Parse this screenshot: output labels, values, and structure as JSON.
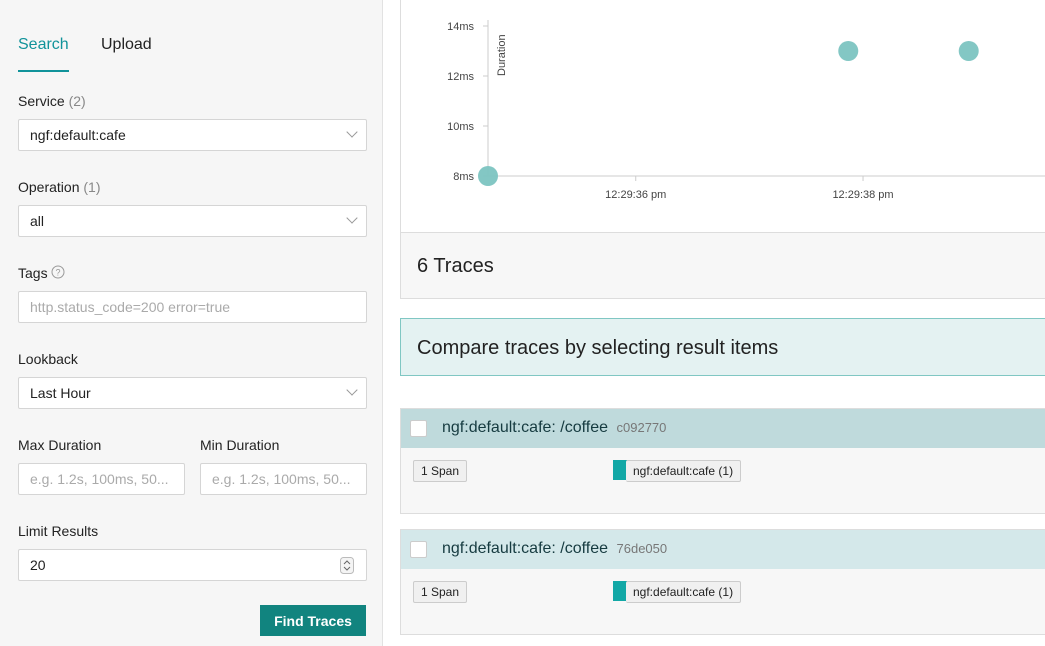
{
  "sidebar": {
    "tabs": [
      "Search",
      "Upload"
    ],
    "service_label": "Service",
    "service_count": "(2)",
    "service_value": "ngf:default:cafe",
    "operation_label": "Operation",
    "operation_count": "(1)",
    "operation_value": "all",
    "tags_label": "Tags",
    "tags_placeholder": "http.status_code=200 error=true",
    "lookback_label": "Lookback",
    "lookback_value": "Last Hour",
    "max_duration_label": "Max Duration",
    "max_duration_placeholder": "e.g. 1.2s, 100ms, 50...",
    "min_duration_label": "Min Duration",
    "min_duration_placeholder": "e.g. 1.2s, 100ms, 50...",
    "limit_label": "Limit Results",
    "limit_value": 20,
    "button": "Find Traces"
  },
  "chart": {
    "type": "scatter",
    "y_label": "Duration",
    "color": "#7cc4c1",
    "x": [
      34.7,
      37.87,
      38.93
    ],
    "values": [
      8,
      13,
      13
    ],
    "xlim": [
      34.7,
      39.61
    ],
    "ylim": [
      8,
      14
    ],
    "xticks": [
      {
        "value": 36,
        "label": "12:29:36 pm"
      },
      {
        "value": 38,
        "label": "12:29:38 pm"
      }
    ],
    "yticks": [
      {
        "value": 8,
        "label": "8ms"
      },
      {
        "value": 10,
        "label": "10ms"
      },
      {
        "value": 12,
        "label": "12ms"
      },
      {
        "value": 14,
        "label": "14ms"
      }
    ]
  },
  "traces_count": "6 Traces",
  "compare_text": "Compare traces by selecting result items",
  "results": [
    {
      "title": "ngf:default:cafe: /coffee",
      "id": "c092770",
      "spans": "1 Span",
      "service": "ngf:default:cafe (1)"
    },
    {
      "title": "ngf:default:cafe: /coffee",
      "id": "76de050",
      "spans": "1 Span",
      "service": "ngf:default:cafe (1)"
    }
  ]
}
